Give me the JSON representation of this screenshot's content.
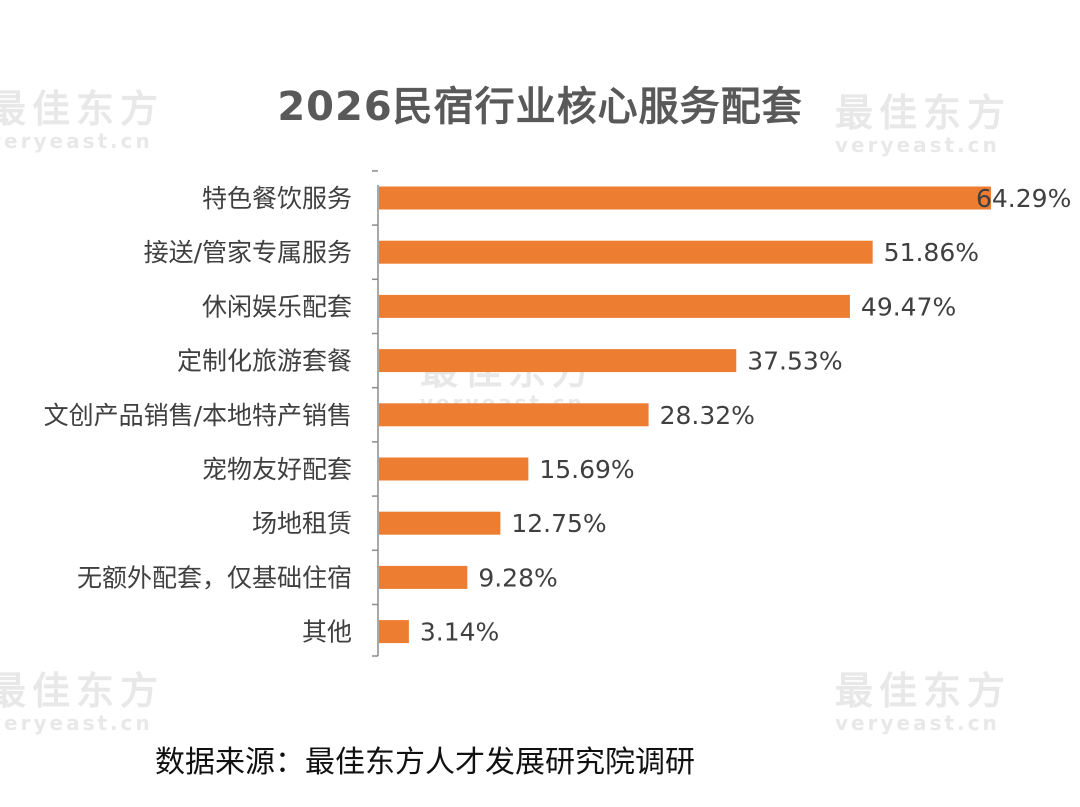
{
  "watermark": {
    "cn": "最佳东方",
    "en": "veryeast.cn"
  },
  "source_note": "数据来源：最佳东方人才发展研究院调研",
  "colors": {
    "bar": "#ED7D31",
    "axis": "#8C8C8C",
    "label": "#404040",
    "title": "#595959"
  },
  "chart_data": {
    "type": "bar",
    "orientation": "horizontal",
    "title": "2026民宿行业核心服务配套",
    "categories": [
      "特色餐饮服务",
      "接送/管家专属服务",
      "休闲娱乐配套",
      "定制化旅游套餐",
      "文创产品销售/本地特产销售",
      "宠物友好配套",
      "场地租赁",
      "无额外配套，仅基础住宿",
      "其他"
    ],
    "values": [
      64.29,
      51.86,
      49.47,
      37.53,
      28.32,
      15.69,
      12.75,
      9.28,
      3.14
    ],
    "value_labels": [
      "64.29%",
      "51.86%",
      "49.47%",
      "37.53%",
      "28.32%",
      "15.69%",
      "12.75%",
      "9.28%",
      "3.14%"
    ],
    "unit": "%",
    "xlim": [
      0,
      64.29
    ],
    "grid": false,
    "legend": "none"
  }
}
